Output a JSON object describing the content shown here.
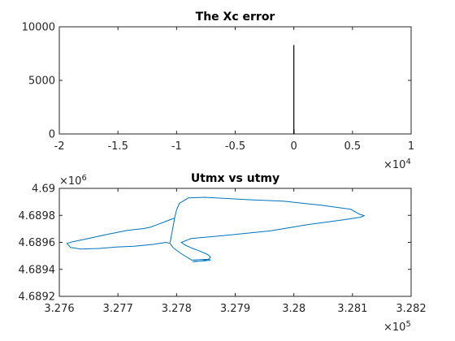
{
  "chart_data": [
    {
      "type": "bar",
      "title": "The Xc error",
      "xlabel": "",
      "ylabel": "",
      "xlim": [
        -20000,
        10000
      ],
      "ylim": [
        0,
        10000
      ],
      "x_exponent_label": "×10",
      "x_exponent": "4",
      "x_ticks": [
        -20000,
        -15000,
        -10000,
        -5000,
        0,
        5000,
        10000
      ],
      "x_tick_labels": [
        "-2",
        "-1.5",
        "-1",
        "-0.5",
        "0",
        "0.5",
        "1"
      ],
      "y_ticks": [
        0,
        5000,
        10000
      ],
      "y_tick_labels": [
        "0",
        "5000",
        "10000"
      ],
      "bars": [
        {
          "x": -10,
          "value": 300
        },
        {
          "x": 0,
          "value": 8300
        },
        {
          "x": 12,
          "value": 450
        }
      ],
      "color": "#000000"
    },
    {
      "type": "line",
      "title": "Utmx vs utmy",
      "xlabel": "",
      "ylabel": "",
      "xlim": [
        327600,
        328200
      ],
      "ylim": [
        4689200,
        4690000
      ],
      "x_exponent_label": "×10",
      "x_exponent": "5",
      "y_exponent_label": "×10",
      "y_exponent": "6",
      "x_ticks": [
        327600,
        327700,
        327800,
        327900,
        328000,
        328100,
        328200
      ],
      "x_tick_labels": [
        "3.276",
        "3.277",
        "3.278",
        "3.279",
        "3.28",
        "3.281",
        "3.282"
      ],
      "y_ticks": [
        4689200,
        4689400,
        4689600,
        4689800,
        4690000
      ],
      "y_tick_labels": [
        "4.6892",
        "4.6894",
        "4.6896",
        "4.6898",
        "4.69"
      ],
      "color": "#0072BD",
      "series": [
        {
          "x": [
            327789,
            327797,
            327800,
            327805,
            327820,
            327848,
            327886,
            327927,
            327982,
            328047,
            328097,
            328112,
            328120,
            328113,
            328083,
            328022,
            327961,
            327900,
            327860,
            327825,
            327812,
            327808,
            327815,
            327826,
            327840,
            327853,
            327858,
            327855,
            327845,
            327832,
            327828,
            327833,
            327848,
            327858,
            327853,
            327840,
            327826,
            327807,
            327794,
            327789,
            327782,
            327760,
            327728,
            327697,
            327668,
            327637,
            327619,
            327613,
            327623,
            327643,
            327683,
            327716,
            327744,
            327755,
            327767,
            327781,
            327797
          ],
          "y": [
            4689599,
            4689789,
            4689840,
            4689890,
            4689929,
            4689934,
            4689925,
            4689915,
            4689905,
            4689875,
            4689845,
            4689808,
            4689798,
            4689786,
            4689766,
            4689730,
            4689686,
            4689659,
            4689642,
            4689629,
            4689606,
            4689600,
            4689579,
            4689557,
            4689535,
            4689510,
            4689490,
            4689476,
            4689464,
            4689458,
            4689457,
            4689460,
            4689463,
            4689469,
            4689474,
            4689472,
            4689468,
            4689519,
            4689561,
            4689592,
            4689600,
            4689585,
            4689572,
            4689565,
            4689555,
            4689550,
            4689563,
            4689592,
            4689605,
            4689623,
            4689660,
            4689689,
            4689702,
            4689712,
            4689731,
            4689754,
            4689781
          ]
        }
      ]
    }
  ]
}
